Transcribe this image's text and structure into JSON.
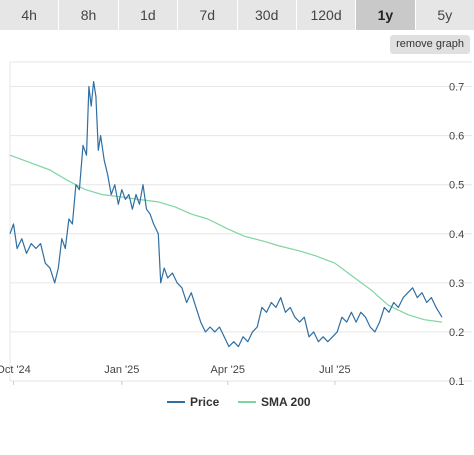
{
  "tabs": [
    {
      "label": "4h",
      "active": false
    },
    {
      "label": "8h",
      "active": false
    },
    {
      "label": "1d",
      "active": false
    },
    {
      "label": "7d",
      "active": false
    },
    {
      "label": "30d",
      "active": false
    },
    {
      "label": "120d",
      "active": false
    },
    {
      "label": "1y",
      "active": true
    },
    {
      "label": "5y",
      "active": false
    }
  ],
  "remove_graph_label": "remove graph",
  "colors": {
    "price": "#2f6fa3",
    "sma": "#7fd5a0",
    "grid": "#e6e6e6",
    "tab_bg": "#e6e6e6",
    "tab_active_bg": "#c9c9c9"
  },
  "chart_data": {
    "type": "line",
    "title": "",
    "xlabel": "",
    "ylabel": "",
    "y_axis_position": "right",
    "ylim": [
      0.1,
      0.75
    ],
    "yticks": [
      0.1,
      0.2,
      0.3,
      0.4,
      0.5,
      0.6,
      0.7
    ],
    "ytick_labels": [
      "0.1",
      "0.2",
      "0.3",
      "0.4",
      "0.5",
      "0.6",
      "0.7"
    ],
    "xlim": [
      "2024-09-28",
      "2025-09-30"
    ],
    "xticks": [
      {
        "label": "Oct '24",
        "date": "2024-10-01"
      },
      {
        "label": "Jan '25",
        "date": "2025-01-01"
      },
      {
        "label": "Apr '25",
        "date": "2025-04-01"
      },
      {
        "label": "Jul '25",
        "date": "2025-07-01"
      }
    ],
    "grid": true,
    "legend_position": "bottom-center",
    "series": [
      {
        "name": "Price",
        "points": [
          [
            "2024-09-28",
            0.4
          ],
          [
            "2024-10-01",
            0.42
          ],
          [
            "2024-10-04",
            0.37
          ],
          [
            "2024-10-08",
            0.39
          ],
          [
            "2024-10-12",
            0.36
          ],
          [
            "2024-10-16",
            0.38
          ],
          [
            "2024-10-20",
            0.37
          ],
          [
            "2024-10-24",
            0.38
          ],
          [
            "2024-10-28",
            0.34
          ],
          [
            "2024-11-01",
            0.33
          ],
          [
            "2024-11-05",
            0.3
          ],
          [
            "2024-11-08",
            0.33
          ],
          [
            "2024-11-11",
            0.39
          ],
          [
            "2024-11-14",
            0.37
          ],
          [
            "2024-11-17",
            0.43
          ],
          [
            "2024-11-20",
            0.42
          ],
          [
            "2024-11-23",
            0.5
          ],
          [
            "2024-11-26",
            0.49
          ],
          [
            "2024-11-29",
            0.58
          ],
          [
            "2024-12-02",
            0.56
          ],
          [
            "2024-12-04",
            0.7
          ],
          [
            "2024-12-06",
            0.66
          ],
          [
            "2024-12-08",
            0.71
          ],
          [
            "2024-12-10",
            0.68
          ],
          [
            "2024-12-12",
            0.57
          ],
          [
            "2024-12-14",
            0.6
          ],
          [
            "2024-12-17",
            0.55
          ],
          [
            "2024-12-20",
            0.52
          ],
          [
            "2024-12-23",
            0.48
          ],
          [
            "2024-12-26",
            0.5
          ],
          [
            "2024-12-29",
            0.46
          ],
          [
            "2025-01-01",
            0.49
          ],
          [
            "2025-01-04",
            0.47
          ],
          [
            "2025-01-07",
            0.48
          ],
          [
            "2025-01-10",
            0.45
          ],
          [
            "2025-01-13",
            0.48
          ],
          [
            "2025-01-16",
            0.46
          ],
          [
            "2025-01-19",
            0.5
          ],
          [
            "2025-01-22",
            0.45
          ],
          [
            "2025-01-25",
            0.44
          ],
          [
            "2025-01-28",
            0.42
          ],
          [
            "2025-02-01",
            0.4
          ],
          [
            "2025-02-03",
            0.3
          ],
          [
            "2025-02-06",
            0.33
          ],
          [
            "2025-02-09",
            0.31
          ],
          [
            "2025-02-13",
            0.32
          ],
          [
            "2025-02-17",
            0.3
          ],
          [
            "2025-02-21",
            0.29
          ],
          [
            "2025-02-25",
            0.26
          ],
          [
            "2025-03-01",
            0.28
          ],
          [
            "2025-03-05",
            0.25
          ],
          [
            "2025-03-09",
            0.22
          ],
          [
            "2025-03-13",
            0.2
          ],
          [
            "2025-03-17",
            0.21
          ],
          [
            "2025-03-21",
            0.2
          ],
          [
            "2025-03-25",
            0.21
          ],
          [
            "2025-03-29",
            0.19
          ],
          [
            "2025-04-02",
            0.17
          ],
          [
            "2025-04-06",
            0.18
          ],
          [
            "2025-04-10",
            0.17
          ],
          [
            "2025-04-14",
            0.19
          ],
          [
            "2025-04-18",
            0.18
          ],
          [
            "2025-04-22",
            0.2
          ],
          [
            "2025-04-26",
            0.21
          ],
          [
            "2025-04-30",
            0.25
          ],
          [
            "2025-05-04",
            0.24
          ],
          [
            "2025-05-08",
            0.26
          ],
          [
            "2025-05-12",
            0.25
          ],
          [
            "2025-05-16",
            0.27
          ],
          [
            "2025-05-20",
            0.24
          ],
          [
            "2025-05-24",
            0.25
          ],
          [
            "2025-05-28",
            0.23
          ],
          [
            "2025-06-01",
            0.22
          ],
          [
            "2025-06-05",
            0.23
          ],
          [
            "2025-06-09",
            0.19
          ],
          [
            "2025-06-13",
            0.2
          ],
          [
            "2025-06-17",
            0.18
          ],
          [
            "2025-06-21",
            0.19
          ],
          [
            "2025-06-25",
            0.18
          ],
          [
            "2025-06-29",
            0.19
          ],
          [
            "2025-07-03",
            0.2
          ],
          [
            "2025-07-07",
            0.23
          ],
          [
            "2025-07-11",
            0.22
          ],
          [
            "2025-07-15",
            0.24
          ],
          [
            "2025-07-19",
            0.22
          ],
          [
            "2025-07-23",
            0.24
          ],
          [
            "2025-07-27",
            0.23
          ],
          [
            "2025-07-31",
            0.21
          ],
          [
            "2025-08-04",
            0.2
          ],
          [
            "2025-08-08",
            0.22
          ],
          [
            "2025-08-12",
            0.25
          ],
          [
            "2025-08-16",
            0.24
          ],
          [
            "2025-08-20",
            0.26
          ],
          [
            "2025-08-24",
            0.25
          ],
          [
            "2025-08-28",
            0.27
          ],
          [
            "2025-09-01",
            0.28
          ],
          [
            "2025-09-05",
            0.29
          ],
          [
            "2025-09-09",
            0.27
          ],
          [
            "2025-09-13",
            0.28
          ],
          [
            "2025-09-17",
            0.26
          ],
          [
            "2025-09-21",
            0.27
          ],
          [
            "2025-09-25",
            0.25
          ],
          [
            "2025-09-30",
            0.23
          ]
        ]
      },
      {
        "name": "SMA 200",
        "points": [
          [
            "2024-09-28",
            0.56
          ],
          [
            "2024-10-15",
            0.545
          ],
          [
            "2024-11-01",
            0.53
          ],
          [
            "2024-11-15",
            0.51
          ],
          [
            "2024-12-01",
            0.49
          ],
          [
            "2024-12-15",
            0.48
          ],
          [
            "2025-01-01",
            0.475
          ],
          [
            "2025-01-15",
            0.47
          ],
          [
            "2025-02-01",
            0.465
          ],
          [
            "2025-02-15",
            0.455
          ],
          [
            "2025-03-01",
            0.44
          ],
          [
            "2025-03-15",
            0.43
          ],
          [
            "2025-04-01",
            0.41
          ],
          [
            "2025-04-15",
            0.395
          ],
          [
            "2025-05-01",
            0.385
          ],
          [
            "2025-05-15",
            0.375
          ],
          [
            "2025-06-01",
            0.365
          ],
          [
            "2025-06-15",
            0.355
          ],
          [
            "2025-07-01",
            0.34
          ],
          [
            "2025-07-15",
            0.315
          ],
          [
            "2025-08-01",
            0.285
          ],
          [
            "2025-08-15",
            0.255
          ],
          [
            "2025-09-01",
            0.235
          ],
          [
            "2025-09-15",
            0.225
          ],
          [
            "2025-09-30",
            0.22
          ]
        ]
      }
    ]
  }
}
